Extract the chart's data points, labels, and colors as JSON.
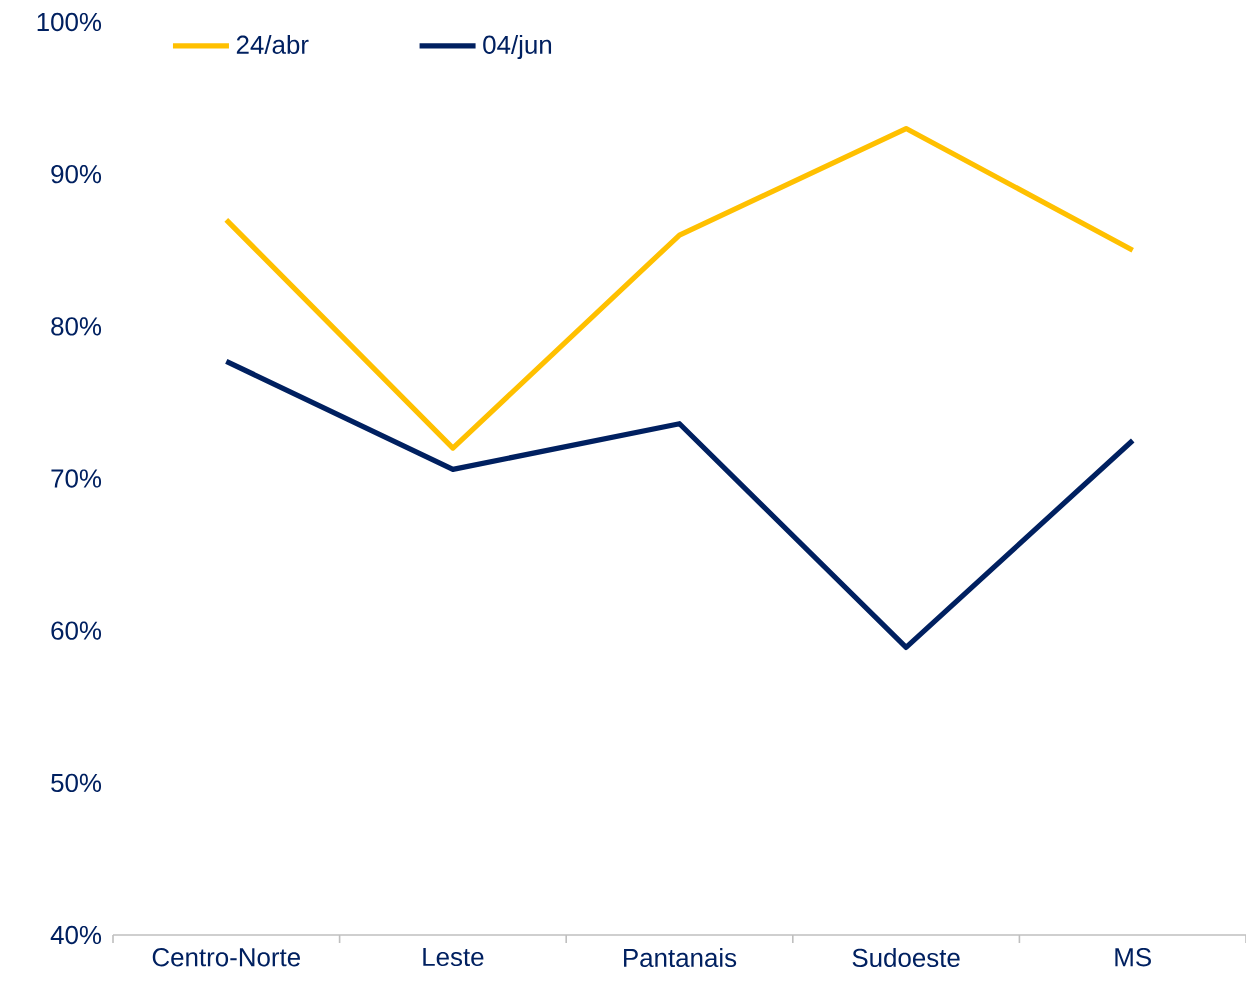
{
  "chart_data": {
    "type": "line",
    "categories": [
      "Centro-Norte",
      "Leste",
      "Pantanais",
      "Sudoeste",
      "MS"
    ],
    "series": [
      {
        "name": "24/abr",
        "color": "#ffc000",
        "values": [
          87,
          72,
          86,
          93,
          85
        ]
      },
      {
        "name": "04/jun",
        "color": "#002060",
        "values": [
          77.7,
          70.6,
          73.6,
          58.9,
          72.5
        ]
      }
    ],
    "ylim": [
      40,
      100
    ],
    "yticks": [
      {
        "value": 40,
        "label": "40%"
      },
      {
        "value": 50,
        "label": "50%"
      },
      {
        "value": 60,
        "label": "60%"
      },
      {
        "value": 70,
        "label": "70%"
      },
      {
        "value": 80,
        "label": "80%"
      },
      {
        "value": 90,
        "label": "90%"
      },
      {
        "value": 100,
        "label": "100%"
      }
    ],
    "legend": "top left"
  }
}
